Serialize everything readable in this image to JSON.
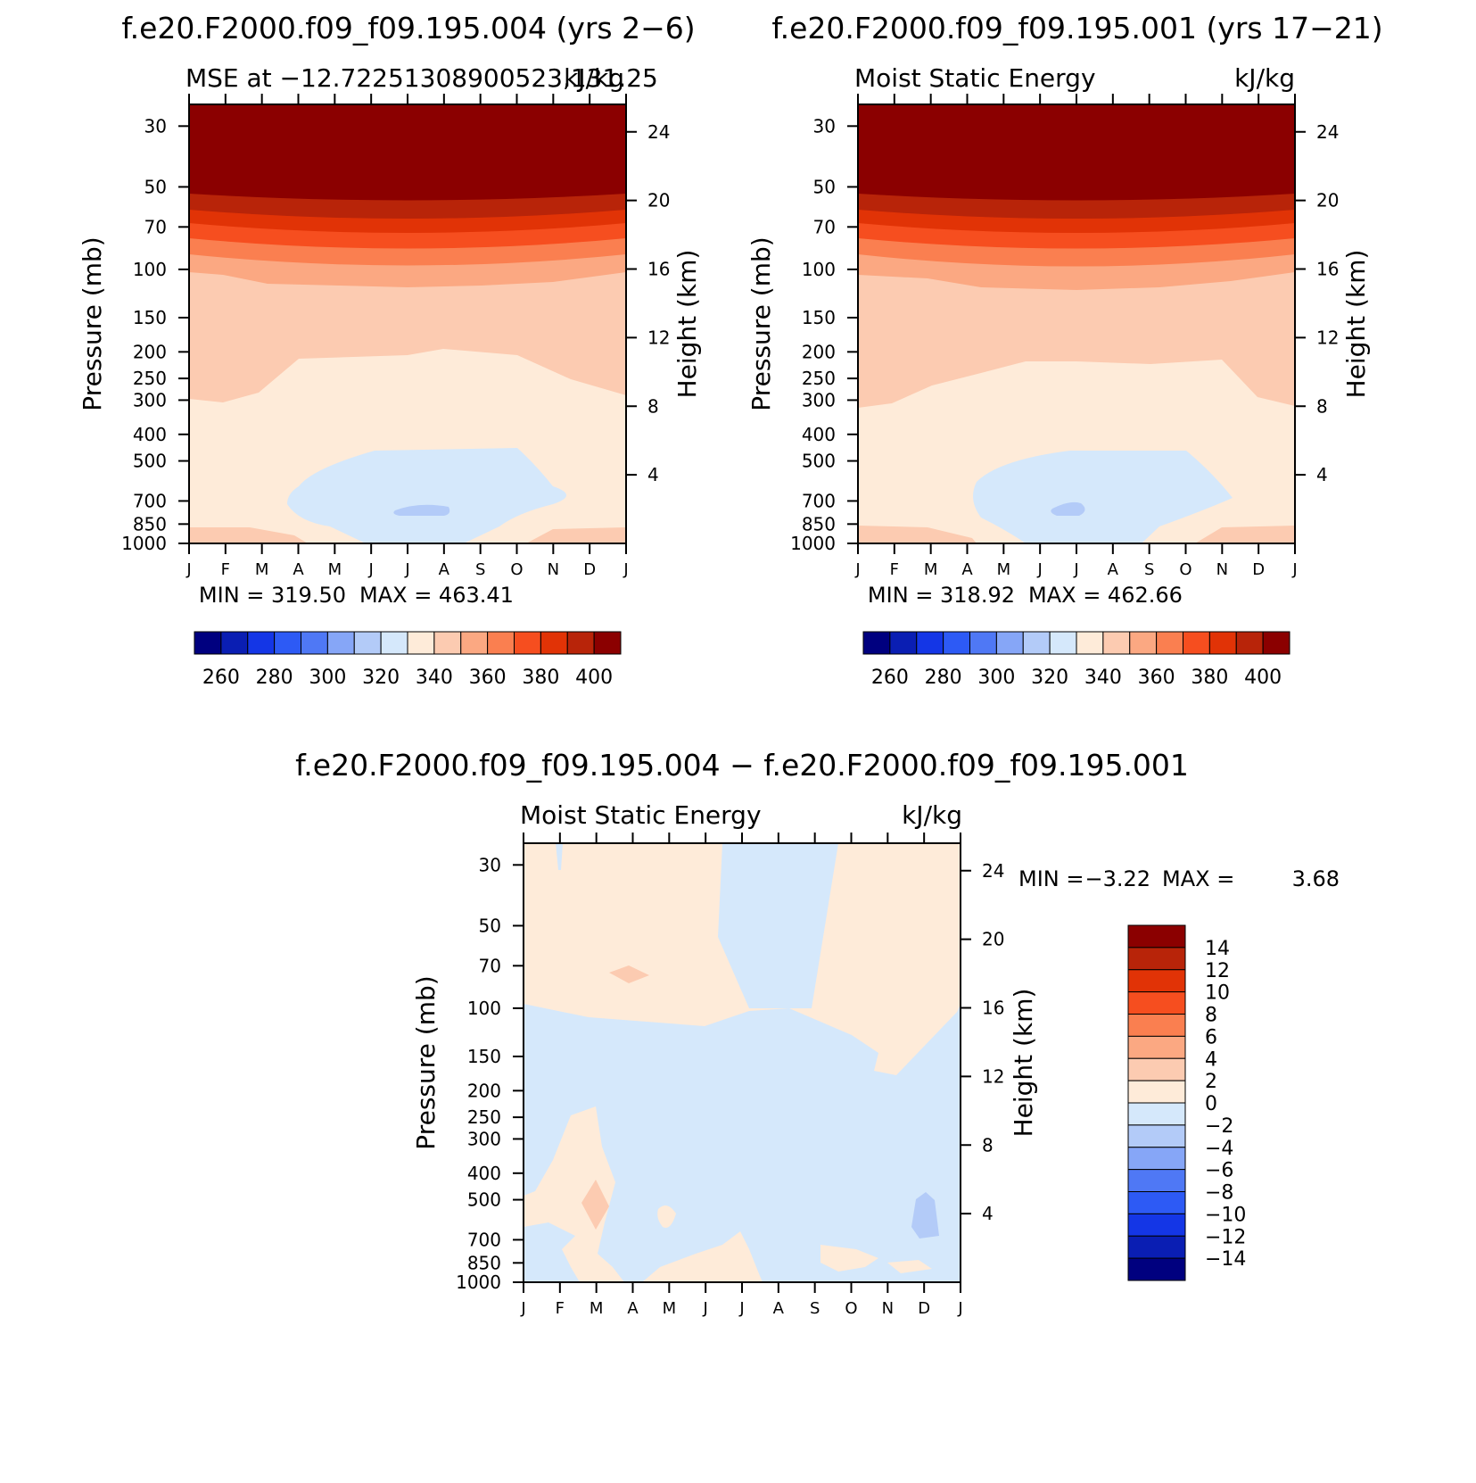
{
  "chart_data": [
    {
      "type": "heatmap",
      "case_title": "f.e20.F2000.f09_f09.195.004 (yrs 2−6)",
      "left_label": "MSE at −12.72251308900523,131.25",
      "right_label": "kJ/kg",
      "xlabel": "",
      "ylabel": "Pressure (mb)",
      "ylabel_right": "Height (km)",
      "x_ticks": [
        "J",
        "F",
        "M",
        "A",
        "M",
        "J",
        "J",
        "A",
        "S",
        "O",
        "N",
        "D",
        "J"
      ],
      "y_ticks": [
        "30",
        "50",
        "70",
        "100",
        "150",
        "200",
        "250",
        "300",
        "400",
        "500",
        "700",
        "850",
        "1000"
      ],
      "y2_ticks": [
        "24",
        "20",
        "16",
        "12",
        "8",
        "4"
      ],
      "min_label": "MIN = 319.50",
      "max_label": "MAX = 463.41",
      "colorbar_labels": [
        "260",
        "280",
        "300",
        "320",
        "340",
        "360",
        "380",
        "400"
      ]
    },
    {
      "type": "heatmap",
      "case_title": "f.e20.F2000.f09_f09.195.001 (yrs 17−21)",
      "left_label": "Moist Static Energy",
      "right_label": "kJ/kg",
      "xlabel": "",
      "ylabel": "Pressure (mb)",
      "ylabel_right": "Height (km)",
      "x_ticks": [
        "J",
        "F",
        "M",
        "A",
        "M",
        "J",
        "J",
        "A",
        "S",
        "O",
        "N",
        "D",
        "J"
      ],
      "y_ticks": [
        "30",
        "50",
        "70",
        "100",
        "150",
        "200",
        "250",
        "300",
        "400",
        "500",
        "700",
        "850",
        "1000"
      ],
      "y2_ticks": [
        "24",
        "20",
        "16",
        "12",
        "8",
        "4"
      ],
      "min_label": "MIN = 318.92",
      "max_label": "MAX = 462.66",
      "colorbar_labels": [
        "260",
        "280",
        "300",
        "320",
        "340",
        "360",
        "380",
        "400"
      ]
    },
    {
      "type": "heatmap",
      "case_title": "f.e20.F2000.f09_f09.195.004 − f.e20.F2000.f09_f09.195.001",
      "left_label": "Moist Static Energy",
      "right_label": "kJ/kg",
      "xlabel": "",
      "ylabel": "Pressure (mb)",
      "ylabel_right": "Height (km)",
      "x_ticks": [
        "J",
        "F",
        "M",
        "A",
        "M",
        "J",
        "J",
        "A",
        "S",
        "O",
        "N",
        "D",
        "J"
      ],
      "y_ticks": [
        "30",
        "50",
        "70",
        "100",
        "150",
        "200",
        "250",
        "300",
        "400",
        "500",
        "700",
        "850",
        "1000"
      ],
      "y2_ticks": [
        "24",
        "20",
        "16",
        "12",
        "8",
        "4"
      ],
      "min_label": "MIN =",
      "min_value": "−3.22",
      "max_label": "MAX =",
      "max_value": "3.68",
      "colorbar_labels": [
        "14",
        "12",
        "10",
        "8",
        "6",
        "4",
        "2",
        "0",
        "−2",
        "−4",
        "−6",
        "−8",
        "−10",
        "−12",
        "−14"
      ]
    }
  ],
  "colors": {
    "scale": [
      "#00007f",
      "#0a1eb3",
      "#1436e6",
      "#2d5af5",
      "#4f78f5",
      "#86a6f7",
      "#b3cbf8",
      "#d5e8fb",
      "#feebd9",
      "#fccbb1",
      "#fba882",
      "#fa7f50",
      "#f64e1f",
      "#e13306",
      "#b82409",
      "#8b0000"
    ]
  }
}
